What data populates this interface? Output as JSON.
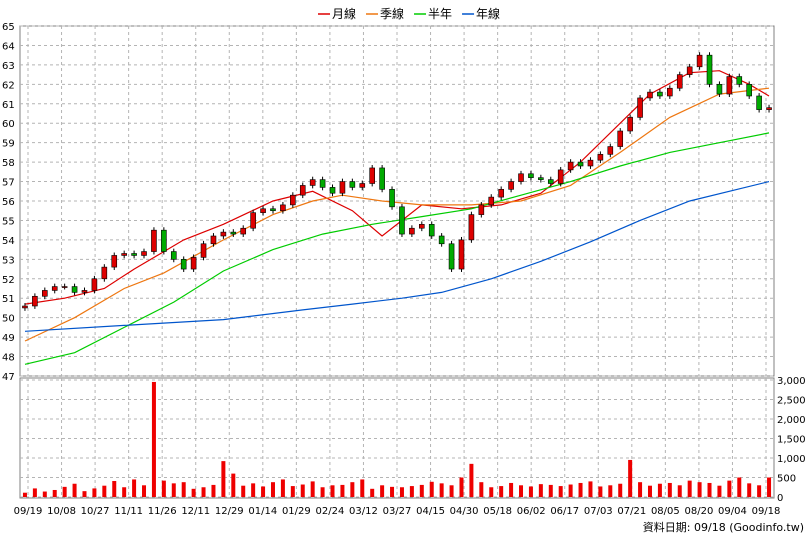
{
  "chart_data": {
    "type": "candlestick",
    "legend": [
      {
        "name": "月線",
        "color": "#dd0000"
      },
      {
        "name": "季線",
        "color": "#ee7711"
      },
      {
        "name": "半年",
        "color": "#00cc00"
      },
      {
        "name": "年線",
        "color": "#0055cc"
      }
    ],
    "legend_placement": "top-center",
    "grid": true,
    "price_axis": {
      "min": 47,
      "max": 65,
      "ticks": [
        47,
        48,
        49,
        50,
        51,
        52,
        53,
        54,
        55,
        56,
        57,
        58,
        59,
        60,
        61,
        62,
        63,
        64,
        65
      ]
    },
    "volume_axis": {
      "min": 0,
      "max": 3000,
      "ticks": [
        0,
        500,
        1000,
        1500,
        2000,
        2500,
        3000
      ],
      "tick_labels": [
        "0",
        "500",
        "1,000",
        "1,500",
        "2,000",
        "2,500",
        "3,000"
      ]
    },
    "x_ticks": [
      "09/19",
      "10/08",
      "10/27",
      "11/11",
      "11/26",
      "12/11",
      "12/29",
      "01/14",
      "01/29",
      "02/24",
      "03/12",
      "03/27",
      "04/15",
      "04/30",
      "05/18",
      "06/02",
      "06/17",
      "07/03",
      "07/21",
      "08/05",
      "08/20",
      "09/04",
      "09/18"
    ],
    "series": [
      {
        "name": "月線",
        "points": [
          [
            0,
            50.7
          ],
          [
            4,
            51.0
          ],
          [
            8,
            51.5
          ],
          [
            11,
            52.5
          ],
          [
            14,
            53.4
          ],
          [
            16,
            54.0
          ],
          [
            20,
            54.8
          ],
          [
            25,
            56.0
          ],
          [
            29,
            56.5
          ],
          [
            33,
            55.5
          ],
          [
            36,
            54.2
          ],
          [
            40,
            55.8
          ],
          [
            44,
            55.6
          ],
          [
            48,
            55.8
          ],
          [
            52,
            56.4
          ],
          [
            56,
            58.0
          ],
          [
            60,
            60.0
          ],
          [
            63,
            61.5
          ],
          [
            67,
            62.6
          ],
          [
            70,
            62.7
          ],
          [
            73,
            62.0
          ],
          [
            75,
            61.4
          ]
        ]
      },
      {
        "name": "季線",
        "points": [
          [
            0,
            48.8
          ],
          [
            5,
            50.0
          ],
          [
            10,
            51.5
          ],
          [
            14,
            52.3
          ],
          [
            20,
            54.0
          ],
          [
            25,
            55.3
          ],
          [
            29,
            56.0
          ],
          [
            32,
            56.3
          ],
          [
            36,
            56.0
          ],
          [
            40,
            55.8
          ],
          [
            45,
            55.8
          ],
          [
            50,
            56.0
          ],
          [
            55,
            56.8
          ],
          [
            60,
            58.5
          ],
          [
            65,
            60.3
          ],
          [
            70,
            61.5
          ],
          [
            75,
            61.8
          ]
        ]
      },
      {
        "name": "半年",
        "points": [
          [
            0,
            47.6
          ],
          [
            5,
            48.2
          ],
          [
            10,
            49.5
          ],
          [
            15,
            50.8
          ],
          [
            20,
            52.4
          ],
          [
            25,
            53.5
          ],
          [
            30,
            54.3
          ],
          [
            35,
            54.8
          ],
          [
            40,
            55.2
          ],
          [
            45,
            55.6
          ],
          [
            50,
            56.3
          ],
          [
            55,
            57.0
          ],
          [
            60,
            57.8
          ],
          [
            65,
            58.5
          ],
          [
            70,
            59.0
          ],
          [
            75,
            59.5
          ]
        ]
      },
      {
        "name": "年線",
        "points": [
          [
            0,
            49.3
          ],
          [
            10,
            49.6
          ],
          [
            20,
            49.9
          ],
          [
            28,
            50.4
          ],
          [
            33,
            50.7
          ],
          [
            38,
            51.0
          ],
          [
            42,
            51.3
          ],
          [
            47,
            52.0
          ],
          [
            52,
            52.9
          ],
          [
            57,
            53.9
          ],
          [
            62,
            55.0
          ],
          [
            67,
            56.0
          ],
          [
            75,
            57.0
          ]
        ]
      }
    ],
    "close": [
      50.6,
      51.1,
      51.4,
      51.6,
      51.6,
      51.3,
      51.4,
      52.0,
      52.6,
      53.2,
      53.3,
      53.2,
      53.4,
      54.5,
      53.4,
      53.0,
      52.5,
      53.1,
      53.8,
      54.2,
      54.4,
      54.3,
      54.6,
      55.4,
      55.6,
      55.5,
      55.8,
      56.3,
      56.8,
      57.1,
      56.7,
      56.4,
      57.0,
      56.7,
      56.9,
      57.7,
      56.6,
      55.7,
      54.3,
      54.6,
      54.8,
      54.2,
      53.8,
      52.5,
      54.0,
      55.3,
      55.8,
      56.2,
      56.6,
      57.0,
      57.4,
      57.2,
      57.1,
      56.9,
      57.6,
      58.0,
      57.8,
      58.1,
      58.4,
      58.8,
      59.6,
      60.3,
      61.3,
      61.6,
      61.4,
      61.8,
      62.5,
      62.9,
      63.5,
      62.0,
      61.5,
      62.4,
      62.0,
      61.4,
      60.7,
      60.8
    ],
    "volume": [
      110,
      220,
      140,
      180,
      260,
      340,
      150,
      220,
      290,
      410,
      250,
      450,
      300,
      2950,
      420,
      350,
      380,
      210,
      250,
      310,
      920,
      600,
      290,
      350,
      270,
      380,
      450,
      280,
      320,
      400,
      250,
      300,
      310,
      380,
      450,
      210,
      300,
      260,
      250,
      280,
      310,
      390,
      350,
      300,
      500,
      850,
      380,
      250,
      280,
      360,
      300,
      270,
      330,
      310,
      280,
      320,
      360,
      400,
      270,
      300,
      340,
      950,
      380,
      290,
      340,
      360,
      300,
      420,
      380,
      360,
      290,
      420,
      500,
      350,
      300,
      500
    ],
    "source_text": "資料日期: 09/18  (Goodinfo.tw)"
  }
}
